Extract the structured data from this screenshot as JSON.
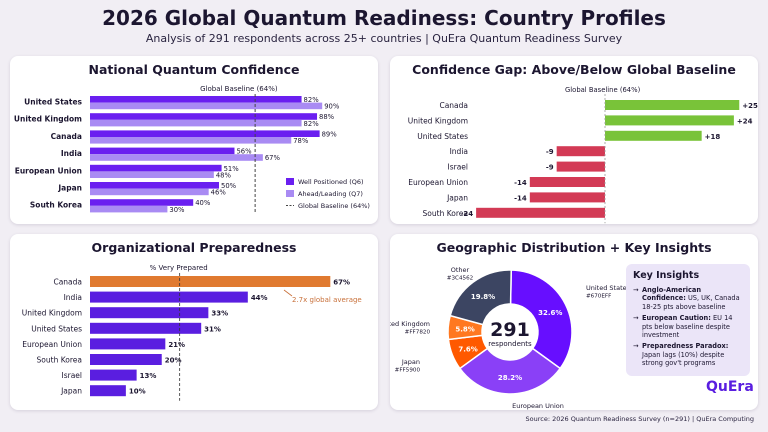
{
  "header": {
    "title": "2026 Global Quantum Readiness: Country Profiles",
    "subtitle": "Analysis of 291 respondents across 25+ countries | QuEra Quantum Readiness Survey"
  },
  "colors": {
    "well_positioned": "#6a1ff0",
    "ahead_leading": "#a98bf3",
    "gap_positive": "#79c339",
    "gap_negative": "#d33a55",
    "preparedness": "#5a1ee0",
    "preparedness_highlight": "#e07a30",
    "annotation": "#c8703a"
  },
  "source": "Source: 2026 Quantum Readiness Survey (n=291) | QuEra Computing",
  "chart_data": [
    {
      "type": "bar",
      "title": "National Quantum Confidence",
      "orientation": "horizontal",
      "categories": [
        "United States",
        "United Kingdom",
        "Canada",
        "India",
        "European Union",
        "Japan",
        "South Korea"
      ],
      "series": [
        {
          "name": "Well Positioned (Q6)",
          "values": [
            82,
            88,
            89,
            56,
            51,
            50,
            40
          ]
        },
        {
          "name": "Ahead/Leading (Q7)",
          "values": [
            90,
            82,
            78,
            67,
            48,
            46,
            30
          ]
        }
      ],
      "labels_well": [
        "82%",
        "88%",
        "89%",
        "56%",
        "51%",
        "50%",
        "40%"
      ],
      "labels_ahead": [
        "90%",
        "82%",
        "78%",
        "67%",
        "48%",
        "46%",
        "30%"
      ],
      "baseline": {
        "value": 64,
        "label": "Global Baseline (64%)",
        "legend": "Global Baseline (64%)"
      },
      "xlim": [
        0,
        100
      ],
      "legend_position": "bottom-right"
    },
    {
      "type": "bar",
      "title": "Confidence Gap: Above/Below Global Baseline",
      "orientation": "horizontal",
      "categories": [
        "Canada",
        "United Kingdom",
        "United States",
        "India",
        "Israel",
        "European Union",
        "Japan",
        "South Korea"
      ],
      "values": [
        25,
        24,
        18,
        -9,
        -9,
        -14,
        -14,
        -24
      ],
      "value_labels": [
        "+25",
        "+24",
        "+18",
        "-9",
        "-9",
        "-14",
        "-14",
        "-24"
      ],
      "baseline_label": "Global Baseline (64%)",
      "xlim": [
        -27,
        27
      ]
    },
    {
      "type": "bar",
      "title": "Organizational Preparedness",
      "orientation": "horizontal",
      "categories": [
        "Canada",
        "India",
        "United Kingdom",
        "United States",
        "European Union",
        "South Korea",
        "Israel",
        "Japan"
      ],
      "values": [
        67,
        44,
        33,
        31,
        21,
        20,
        13,
        10
      ],
      "value_labels": [
        "67%",
        "44%",
        "33%",
        "31%",
        "21%",
        "20%",
        "13%",
        "10%"
      ],
      "reference_label": "% Very Prepared",
      "reference_value": 25,
      "annotation": "2.7x global average",
      "xlim": [
        0,
        75
      ]
    },
    {
      "type": "pie",
      "title": "Geographic Distribution + Key Insights",
      "center_value": "291",
      "center_label": "respondents",
      "slices": [
        {
          "label": "United States",
          "code": "#670EFF",
          "value": 32.6,
          "value_label": "32.6%",
          "color": "#670eff"
        },
        {
          "label": "European Union",
          "code": "#8A40F7",
          "value": 28.2,
          "value_label": "28.2%",
          "color": "#8a40f7"
        },
        {
          "label": "Japan",
          "code": "#FF5900",
          "value": 7.6,
          "value_label": "7.6%",
          "color": "#ff5900"
        },
        {
          "label": "United Kingdom",
          "code": "#FF7820",
          "value": 5.8,
          "value_label": "5.8%",
          "color": "#ff7820"
        },
        {
          "label": "Other",
          "code": "#3C4562",
          "value": 19.8,
          "value_label": "19.8%",
          "color": "#3c4562"
        }
      ]
    }
  ],
  "insights": {
    "title": "Key Insights",
    "items": [
      {
        "head": "Anglo-American Confidence:",
        "body": "US, UK, Canada 18-25 pts above baseline"
      },
      {
        "head": "European Caution:",
        "body": "EU 14 pts below baseline despite investment"
      },
      {
        "head": "Preparedness Paradox:",
        "body": "Japan lags (10%) despite strong gov't programs"
      }
    ],
    "arrow": "→"
  },
  "logo": "QuEra"
}
